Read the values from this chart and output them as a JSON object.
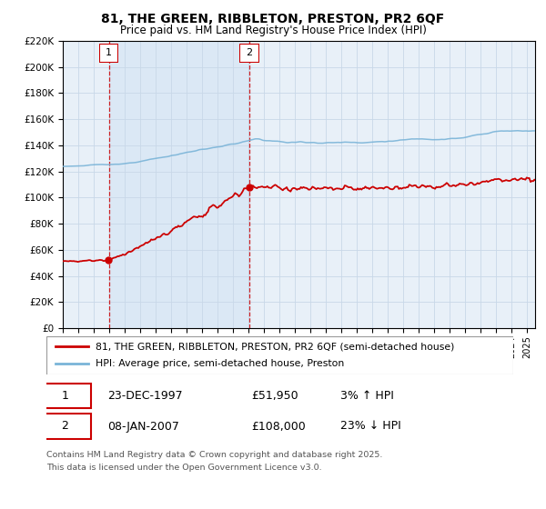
{
  "title": "81, THE GREEN, RIBBLETON, PRESTON, PR2 6QF",
  "subtitle": "Price paid vs. HM Land Registry's House Price Index (HPI)",
  "legend_line1": "81, THE GREEN, RIBBLETON, PRESTON, PR2 6QF (semi-detached house)",
  "legend_line2": "HPI: Average price, semi-detached house, Preston",
  "sale1_date": "23-DEC-1997",
  "sale1_price": "£51,950",
  "sale1_hpi": "3% ↑ HPI",
  "sale2_date": "08-JAN-2007",
  "sale2_price": "£108,000",
  "sale2_hpi": "23% ↓ HPI",
  "footer": "Contains HM Land Registry data © Crown copyright and database right 2025.\nThis data is licensed under the Open Government Licence v3.0.",
  "hpi_color": "#7ab4d8",
  "property_color": "#cc0000",
  "vline_color": "#cc0000",
  "shade_color": "#dbe8f5",
  "background_color": "#ffffff",
  "grid_color": "#c8d8e8",
  "chart_bg": "#e8f0f8",
  "ylim": [
    0,
    220000
  ],
  "yticks": [
    0,
    20000,
    40000,
    60000,
    80000,
    100000,
    120000,
    140000,
    160000,
    180000,
    200000,
    220000
  ],
  "sale1_x": 1997.97,
  "sale2_x": 2007.03
}
